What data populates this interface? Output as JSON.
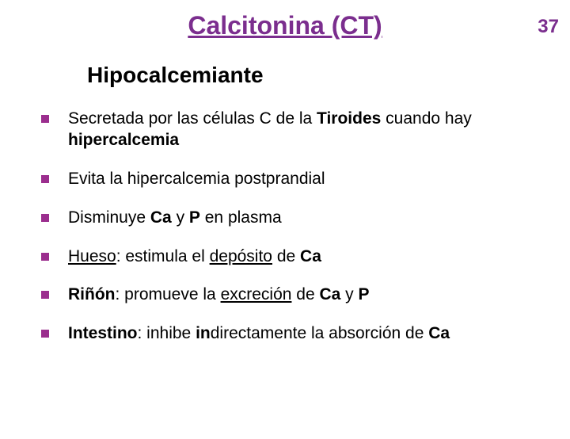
{
  "page_number": "37",
  "title": "Calcitonina (CT)",
  "subheading": "Hipocalcemiante",
  "colors": {
    "accent": "#7b2e8e",
    "bullet": "#9b2e8e",
    "text": "#000000",
    "background": "#ffffff"
  },
  "typography": {
    "title_fontsize": 32,
    "subheading_fontsize": 28,
    "body_fontsize": 21,
    "font_family": "Verdana"
  },
  "bullets": [
    {
      "segments": [
        {
          "text": "Secretada por las células C de la "
        },
        {
          "text": "Tiroides",
          "bold": true
        },
        {
          "text": " cuando hay "
        },
        {
          "text": "hipercalcemia",
          "bold": true
        }
      ]
    },
    {
      "segments": [
        {
          "text": "Evita la hipercalcemia postprandial"
        }
      ]
    },
    {
      "segments": [
        {
          "text": "Disminuye "
        },
        {
          "text": "Ca",
          "bold": true
        },
        {
          "text": " y "
        },
        {
          "text": "P",
          "bold": true
        },
        {
          "text": " en plasma"
        }
      ]
    },
    {
      "segments": [
        {
          "text": "Hueso",
          "underline": true
        },
        {
          "text": ": estimula el "
        },
        {
          "text": "depósito",
          "underline": true
        },
        {
          "text": " de "
        },
        {
          "text": "Ca",
          "bold": true
        }
      ]
    },
    {
      "segments": [
        {
          "text": "Riñón",
          "bold": true
        },
        {
          "text": ": promueve la "
        },
        {
          "text": "excreción",
          "underline": true
        },
        {
          "text": " de "
        },
        {
          "text": "Ca",
          "bold": true
        },
        {
          "text": " y "
        },
        {
          "text": "P",
          "bold": true
        }
      ]
    },
    {
      "segments": [
        {
          "text": "Intestino",
          "bold": true
        },
        {
          "text": ": inhibe "
        },
        {
          "text": "in",
          "bold": true
        },
        {
          "text": "directamente la absorción de "
        },
        {
          "text": "Ca",
          "bold": true
        }
      ]
    }
  ]
}
